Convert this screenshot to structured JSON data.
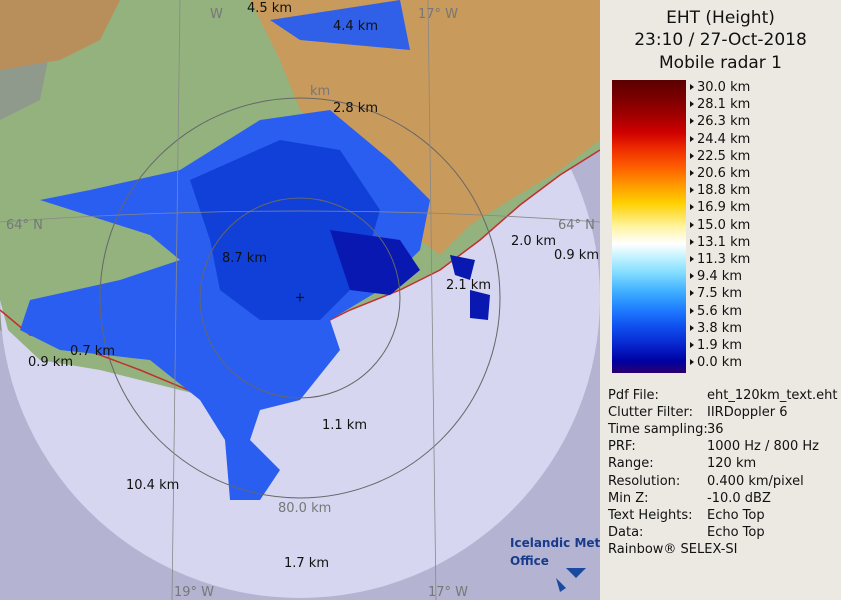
{
  "header": {
    "title": "EHT (Height)",
    "time": "23:10 / 27-Oct-2018",
    "radar": "Mobile radar 1"
  },
  "legend": [
    "30.0 km",
    "28.1 km",
    "26.3 km",
    "24.4 km",
    "22.5 km",
    "20.6 km",
    "18.8 km",
    "16.9 km",
    "15.0 km",
    "13.1 km",
    "11.3 km",
    "9.4 km",
    "7.5 km",
    "5.6 km",
    "3.8 km",
    "1.9 km",
    "0.0 km"
  ],
  "info": [
    [
      "Pdf File:",
      "eht_120km_text.eht"
    ],
    [
      "Clutter Filter:",
      "IIRDoppler 6"
    ],
    [
      "Time sampling:",
      "36"
    ],
    [
      "PRF:",
      "1000 Hz / 800 Hz"
    ],
    [
      "Range:",
      "120 km"
    ],
    [
      "Resolution:",
      "0.400 km/pixel"
    ],
    [
      "Min Z:",
      "-10.0 dBZ"
    ],
    [
      "Text Heights:",
      "Echo Top"
    ],
    [
      "Data:",
      "Echo Top"
    ]
  ],
  "footer": "Rainbow® SELEX-SI",
  "logo": [
    "Icelandic Met",
    "Office"
  ],
  "map": {
    "echo_labels": [
      "4.5 km",
      "4.4 km",
      "2.8 km",
      "8.7 km",
      "2.0 km",
      "0.9 km",
      "2.1 km",
      "0.7 km",
      "0.9 km",
      "1.1 km",
      "10.4 km",
      "1.7 km"
    ],
    "grid_labels": [
      "W",
      "17° W",
      "km",
      "64° N",
      "64° N",
      "80.0 km",
      "19° W",
      "17° W"
    ]
  }
}
